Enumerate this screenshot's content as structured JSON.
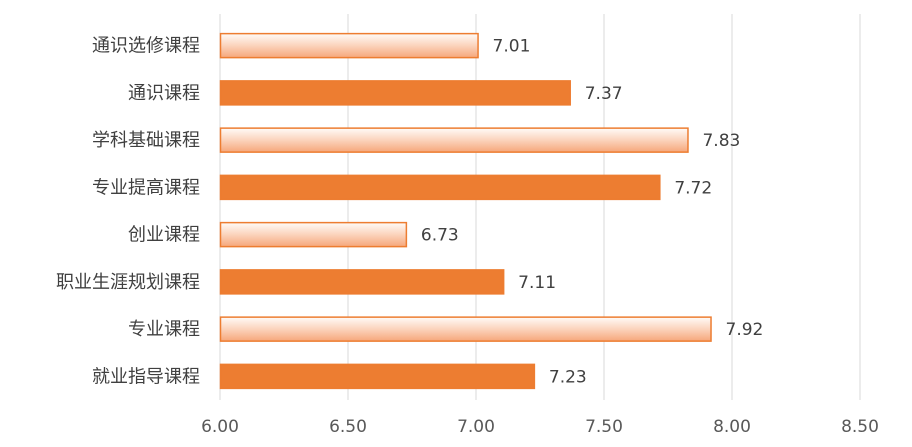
{
  "chart_data": {
    "type": "bar",
    "orientation": "horizontal",
    "categories": [
      "通识选修课程",
      "通识课程",
      "学科基础课程",
      "专业提高课程",
      "创业课程",
      "职业生涯规划课程",
      "专业课程",
      "就业指导课程"
    ],
    "values": [
      7.01,
      7.37,
      7.83,
      7.72,
      6.73,
      7.11,
      7.92,
      7.23
    ],
    "value_labels": [
      "7.01",
      "7.37",
      "7.83",
      "7.72",
      "6.73",
      "7.11",
      "7.92",
      "7.23"
    ],
    "bar_styles": [
      "light-gradient",
      "solid",
      "light-gradient",
      "solid",
      "light-gradient",
      "solid",
      "light-gradient",
      "solid"
    ],
    "xlim": [
      6.0,
      8.5
    ],
    "x_ticks": [
      "6.00",
      "6.50",
      "7.00",
      "7.50",
      "8.00",
      "8.50"
    ],
    "x_tick_values": [
      6.0,
      6.5,
      7.0,
      7.5,
      8.0,
      8.5
    ],
    "grid": true,
    "legend": "none",
    "colors": {
      "solid_fill": "#ed7d31",
      "gradient_light": "#fffaf7",
      "gradient_dark": "#f7b18a",
      "border": "#ed7d31",
      "grid": "#d9d9d9",
      "text": "#404040"
    }
  }
}
